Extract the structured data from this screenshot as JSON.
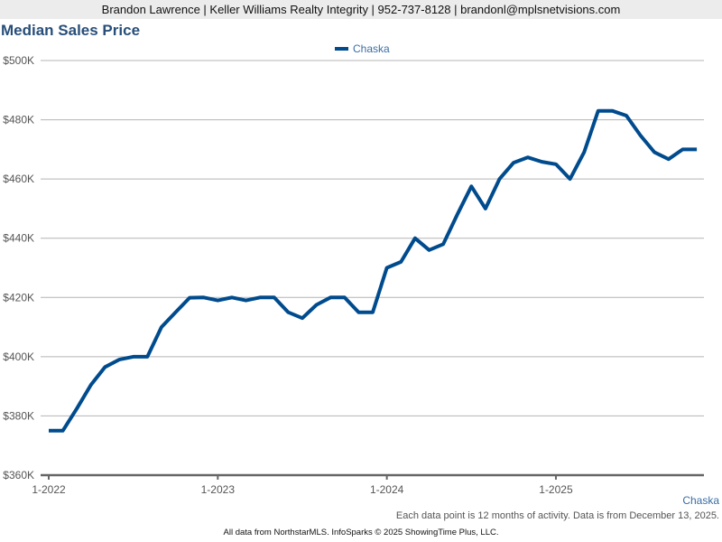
{
  "header": {
    "text": "Brandon Lawrence | Keller Williams Realty Integrity | 952-737-8128 | brandonl@mplsnetvisions.com"
  },
  "chart_data": {
    "type": "line",
    "title": "Median Sales Price",
    "xlabel": "",
    "ylabel": "",
    "ylim": [
      360000,
      500000
    ],
    "yticks": [
      360000,
      380000,
      400000,
      420000,
      440000,
      460000,
      480000,
      500000
    ],
    "ytick_labels": [
      "$360K",
      "$380K",
      "$400K",
      "$420K",
      "$440K",
      "$460K",
      "$480K",
      "$500K"
    ],
    "xtick_labels": [
      "1-2022",
      "1-2023",
      "1-2024",
      "1-2025"
    ],
    "x_start": "2022-01",
    "x_end": "2025-11",
    "grid": true,
    "legend_position": "top-center",
    "series": [
      {
        "name": "Chaska",
        "color": "#004b8d",
        "values": [
          375000,
          375000,
          382500,
          390500,
          396500,
          399000,
          400000,
          400000,
          410000,
          415000,
          419900,
          420000,
          419000,
          420000,
          419000,
          420000,
          420000,
          415000,
          413000,
          417500,
          420000,
          420000,
          415000,
          415000,
          430000,
          432000,
          440000,
          436000,
          438000,
          448000,
          457500,
          450000,
          460000,
          465500,
          467300,
          465800,
          465000,
          460000,
          469000,
          483000,
          483000,
          481400,
          474700,
          469000,
          466700,
          470000,
          470000
        ]
      }
    ]
  },
  "source_label": "Chaska",
  "note": "Each data point is 12 months of activity. Data is from December 13, 2025.",
  "footer": "All data from NorthstarMLS. InfoSparks © 2025 ShowingTime Plus, LLC."
}
